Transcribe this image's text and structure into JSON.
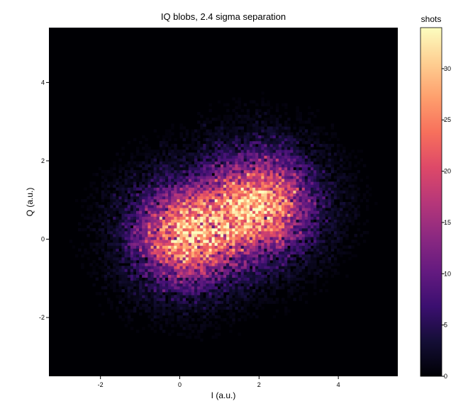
{
  "chart_data": {
    "type": "heatmap",
    "title": "IQ blobs, 2.4 sigma separation",
    "xlabel": "I (a.u.)",
    "ylabel": "Q (a.u.)",
    "xlim": [
      -3.3,
      5.5
    ],
    "ylim": [
      -3.5,
      5.4
    ],
    "x_ticks": [
      -2,
      0,
      2,
      4
    ],
    "y_ticks": [
      -2,
      0,
      2,
      4
    ],
    "colormap": "magma",
    "colorbar": {
      "title": "shots",
      "min": 0,
      "max": 34,
      "ticks": [
        0,
        5,
        10,
        15,
        20,
        25,
        30
      ]
    },
    "bins": {
      "x": 120,
      "y": 120
    },
    "blobs": [
      {
        "center": [
          0.2,
          0.1
        ],
        "sigma": [
          0.85,
          0.8
        ],
        "peak_counts": 28
      },
      {
        "center": [
          2.0,
          0.9
        ],
        "sigma": [
          0.85,
          0.8
        ],
        "peak_counts": 28
      }
    ]
  }
}
